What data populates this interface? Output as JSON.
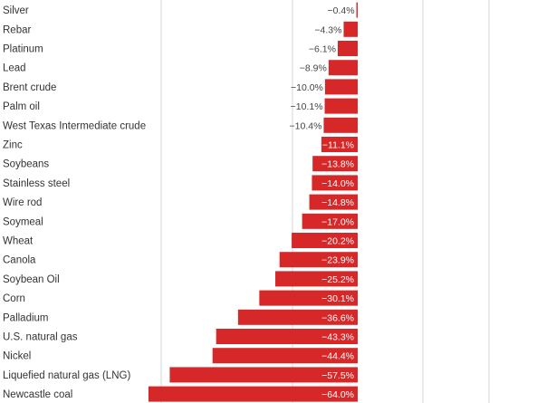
{
  "chart_data": {
    "type": "bar",
    "orientation": "horizontal",
    "bar_color": "#d62828",
    "grid": true,
    "xlim": [
      -65,
      0
    ],
    "categories": [
      "Silver",
      "Rebar",
      "Platinum",
      "Lead",
      "Brent crude",
      "Palm oil",
      "West Texas Intermediate crude",
      "Zinc",
      "Soybeans",
      "Stainless steel",
      "Wire rod",
      "Soymeal",
      "Wheat",
      "Canola",
      "Soybean Oil",
      "Corn",
      "Palladium",
      "U.S. natural gas",
      "Nickel",
      "Liquefied natural gas (LNG)",
      "Newcastle coal"
    ],
    "values": [
      -0.4,
      -4.3,
      -6.1,
      -8.9,
      -10.0,
      -10.1,
      -10.4,
      -11.1,
      -13.8,
      -14.0,
      -14.8,
      -17.0,
      -20.2,
      -23.9,
      -25.2,
      -30.1,
      -36.6,
      -43.3,
      -44.4,
      -57.5,
      -64.0
    ],
    "value_labels": [
      "−0.4%",
      "−4.3%",
      "−6.1%",
      "−8.9%",
      "−10.0%",
      "−10.1%",
      "−10.4%",
      "−11.1%",
      "−13.8%",
      "−14.0%",
      "−14.8%",
      "−17.0%",
      "−20.2%",
      "−23.9%",
      "−25.2%",
      "−30.1%",
      "−36.6%",
      "−43.3%",
      "−44.4%",
      "−57.5%",
      "−64.0%"
    ]
  }
}
